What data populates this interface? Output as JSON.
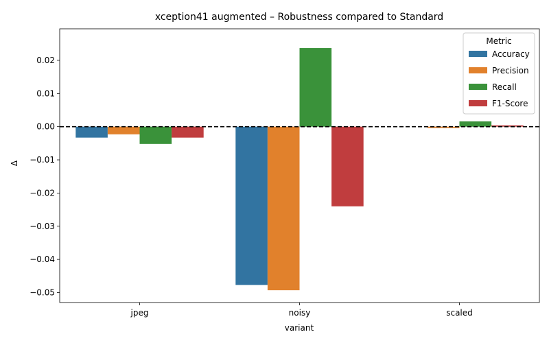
{
  "chart_data": {
    "type": "bar",
    "title": "xception41 augmented – Robustness compared to Standard",
    "xlabel": "variant",
    "ylabel": "Δ",
    "categories": [
      "jpeg",
      "noisy",
      "scaled"
    ],
    "ylim": [
      -0.053,
      0.0295
    ],
    "yticks": [
      0.02,
      0.01,
      0.0,
      -0.01,
      -0.02,
      -0.03,
      -0.04,
      -0.05
    ],
    "ytick_labels": [
      "0.02",
      "0.01",
      "0.00",
      "−0.01",
      "−0.02",
      "−0.03",
      "−0.04",
      "−0.05"
    ],
    "reference_line": {
      "value": 0.0,
      "style": "dashed",
      "color": "#000000"
    },
    "grid": false,
    "legend": {
      "title": "Metric",
      "placement": "top-right"
    },
    "series": [
      {
        "name": "Accuracy",
        "color": "#3274a1",
        "values": [
          -0.0033,
          -0.0477,
          0.0
        ]
      },
      {
        "name": "Precision",
        "color": "#e1812c",
        "values": [
          -0.0023,
          -0.0493,
          -0.0004
        ]
      },
      {
        "name": "Recall",
        "color": "#3a923a",
        "values": [
          -0.0052,
          0.0237,
          0.0016
        ]
      },
      {
        "name": "F1-Score",
        "color": "#c03d3e",
        "values": [
          -0.0033,
          -0.024,
          0.0004
        ]
      }
    ]
  }
}
